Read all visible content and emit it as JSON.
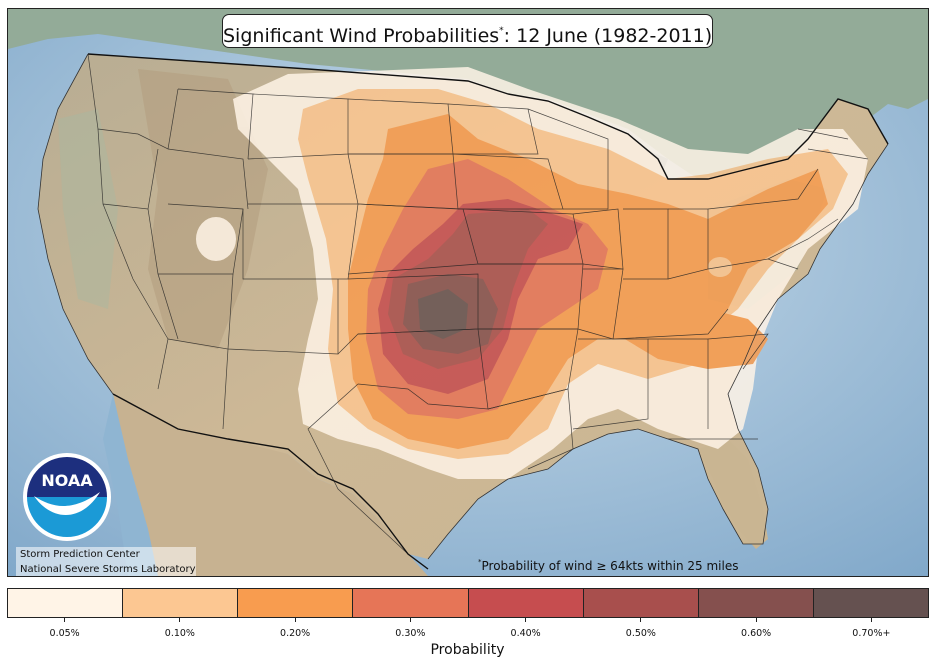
{
  "title": {
    "text": "Significant Wind Probabilities",
    "marker": "*",
    "suffix": ": 12 June (1982-2011)"
  },
  "footnote": {
    "marker": "*",
    "text": "Probability of wind ≥ 64kts within 25 miles"
  },
  "credits": [
    "Storm Prediction Center",
    "National Severe Storms Laboratory"
  ],
  "logo": {
    "text": "NOAA",
    "icon": "noaa-logo-icon",
    "primary_color": "#1d2f7e",
    "secondary_color": "#1b9ad6"
  },
  "colorbar": {
    "label": "Probability",
    "tick_labels": [
      "0.05%",
      "0.10%",
      "0.20%",
      "0.30%",
      "0.40%",
      "0.50%",
      "0.60%",
      "0.70%+"
    ],
    "colors": [
      "#fff4e7",
      "#fcc792",
      "#f89c4f",
      "#e67557",
      "#c64d4f",
      "#a84f4d",
      "#85504e",
      "#655150"
    ]
  },
  "map_colors": {
    "land": "#cbb697",
    "water": "#8fb5d2",
    "mountain": "#b69f80",
    "forest": "#91a894"
  }
}
